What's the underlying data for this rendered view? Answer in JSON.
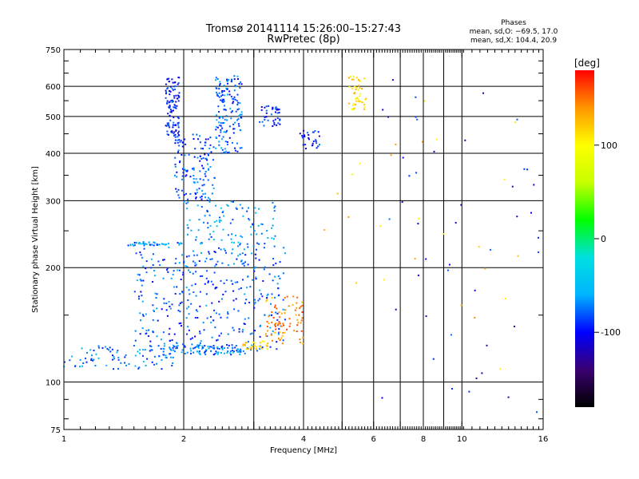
{
  "chart_data": {
    "type": "scatter",
    "title": "Tromsø 20141114 15:26:00–15:27:43",
    "subtitle": "RwPretec (8p)",
    "stats": {
      "heading": "Phases",
      "line1": "mean, sd,O: −69.5, 17.0",
      "line2": "mean, sd,X: 104.4, 20.9"
    },
    "xlabel": "Frequency [MHz]",
    "ylabel": "Stationary phase Virtual Height [km]",
    "x_scale": "log",
    "y_scale": "log",
    "xlim": [
      1,
      16
    ],
    "ylim": [
      75,
      750
    ],
    "x_ticks": [
      1,
      2,
      4,
      6,
      8,
      10,
      16
    ],
    "x_ticks_unlabeled": [
      3,
      5,
      7,
      9
    ],
    "y_ticks": [
      75,
      100,
      200,
      300,
      400,
      500,
      600,
      750
    ],
    "y_ticks_minor": [
      80,
      90,
      150,
      250,
      350,
      450,
      550,
      650,
      700
    ],
    "grid": true,
    "colorbar": {
      "label": "[deg]",
      "range": [
        -180,
        180
      ],
      "ticks": [
        100,
        0,
        -100
      ],
      "stops": [
        "#000000",
        "#3a0070",
        "#0000ff",
        "#00b4ff",
        "#00e0e0",
        "#00ff00",
        "#c8ff00",
        "#ffff00",
        "#ff9600",
        "#ff0000"
      ]
    },
    "series": [
      {
        "freq_range": [
          1.0,
          1.9
        ],
        "height_range": [
          108,
          125
        ],
        "phase": -70,
        "points": 90
      },
      {
        "freq_range": [
          1.85,
          2.9
        ],
        "height_range": [
          118,
          125
        ],
        "phase": -75,
        "points": 90
      },
      {
        "freq_range": [
          1.8,
          1.95
        ],
        "height_range": [
          440,
          640
        ],
        "phase": -95,
        "points": 110
      },
      {
        "freq_range": [
          1.9,
          2.4
        ],
        "height_range": [
          300,
          450
        ],
        "phase": -85,
        "points": 130
      },
      {
        "freq_range": [
          2.4,
          2.8
        ],
        "height_range": [
          400,
          640
        ],
        "phase": -80,
        "points": 150
      },
      {
        "freq_range": [
          2.0,
          3.4
        ],
        "height_range": [
          230,
          300
        ],
        "phase": -65,
        "points": 100
      },
      {
        "freq_range": [
          1.45,
          2.0
        ],
        "height_range": [
          228,
          234
        ],
        "phase": -70,
        "points": 40
      },
      {
        "freq_range": [
          1.5,
          3.6
        ],
        "height_range": [
          120,
          230
        ],
        "phase": -82,
        "points": 380
      },
      {
        "freq_range": [
          3.1,
          3.5
        ],
        "height_range": [
          470,
          540
        ],
        "phase": -95,
        "points": 40
      },
      {
        "freq_range": [
          3.9,
          4.4
        ],
        "height_range": [
          410,
          460
        ],
        "phase": -100,
        "points": 30
      },
      {
        "freq_range": [
          2.8,
          3.3
        ],
        "height_range": [
          122,
          128
        ],
        "phase": 115,
        "points": 30
      },
      {
        "freq_range": [
          3.2,
          4.0
        ],
        "height_range": [
          125,
          170
        ],
        "phase": 140,
        "points": 80
      },
      {
        "freq_range": [
          5.2,
          5.8
        ],
        "height_range": [
          520,
          640
        ],
        "phase": 110,
        "points": 45
      },
      {
        "freq_range": [
          6.2,
          16.0
        ],
        "height_range": [
          80,
          640
        ],
        "phase": -100,
        "points": 45
      },
      {
        "freq_range": [
          4.4,
          14.5
        ],
        "height_range": [
          100,
          620
        ],
        "phase": 120,
        "points": 25
      }
    ]
  }
}
